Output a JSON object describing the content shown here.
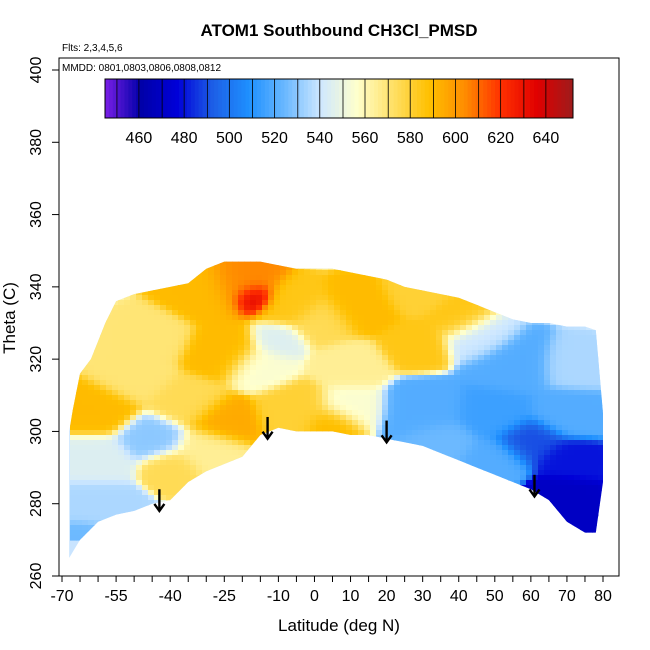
{
  "chart_data": {
    "type": "heatmap",
    "title": "ATOM1 Southbound CH3Cl_PMSD",
    "annotations": [
      "Flts: 2,3,4,5,6",
      "MMDD: 0801,0803,0806,0808,0812"
    ],
    "xlabel": "Latitude (deg N)",
    "ylabel": "Theta (C)",
    "xlim": [
      -70,
      80
    ],
    "ylim": [
      260,
      400
    ],
    "x_ticks": [
      -70,
      -55,
      -40,
      -25,
      -10,
      0,
      10,
      20,
      30,
      40,
      50,
      60,
      70,
      80
    ],
    "x_minor_ticks": [
      -65,
      -60,
      -50,
      -45,
      -35,
      -30,
      -20,
      -15,
      -5,
      5,
      15,
      25,
      35,
      45,
      55,
      65,
      75
    ],
    "y_ticks": [
      260,
      280,
      300,
      320,
      340,
      360,
      380,
      400
    ],
    "colorbar": {
      "min": 445,
      "max": 652,
      "ticks": [
        460,
        480,
        500,
        520,
        540,
        560,
        580,
        600,
        620,
        640
      ],
      "colors": [
        "#7a1fe6",
        "#0000a8",
        "#0000d8",
        "#1d5fe6",
        "#1e90ff",
        "#6ab8ff",
        "#cfe8ff",
        "#ffffcc",
        "#ffe066",
        "#ffc000",
        "#ff8c00",
        "#ff3000",
        "#e00000",
        "#9e1b1b"
      ]
    },
    "boundary": {
      "top": [
        [
          -68,
          300
        ],
        [
          -67,
          306
        ],
        [
          -65,
          316
        ],
        [
          -62,
          320
        ],
        [
          -60,
          325
        ],
        [
          -58,
          330
        ],
        [
          -55,
          336
        ],
        [
          -50,
          338
        ],
        [
          -45,
          339
        ],
        [
          -40,
          340
        ],
        [
          -35,
          341
        ],
        [
          -30,
          345
        ],
        [
          -25,
          347
        ],
        [
          -20,
          347
        ],
        [
          -15,
          347
        ],
        [
          -10,
          346
        ],
        [
          -5,
          345
        ],
        [
          0,
          345
        ],
        [
          5,
          345
        ],
        [
          10,
          344
        ],
        [
          15,
          343
        ],
        [
          20,
          342
        ],
        [
          25,
          340
        ],
        [
          30,
          339
        ],
        [
          35,
          338
        ],
        [
          40,
          337
        ],
        [
          45,
          335
        ],
        [
          50,
          333
        ],
        [
          55,
          331
        ],
        [
          60,
          330
        ],
        [
          65,
          330
        ],
        [
          70,
          329
        ],
        [
          75,
          329
        ],
        [
          78,
          328
        ],
        [
          80,
          305
        ]
      ],
      "bottom": [
        [
          80,
          286
        ],
        [
          78,
          272
        ],
        [
          75,
          272
        ],
        [
          70,
          275
        ],
        [
          65,
          281
        ],
        [
          60,
          284
        ],
        [
          55,
          286
        ],
        [
          50,
          288
        ],
        [
          45,
          290
        ],
        [
          40,
          292
        ],
        [
          35,
          294
        ],
        [
          30,
          296
        ],
        [
          25,
          297
        ],
        [
          20,
          298
        ],
        [
          15,
          299
        ],
        [
          10,
          299
        ],
        [
          5,
          300
        ],
        [
          0,
          300
        ],
        [
          -5,
          300
        ],
        [
          -10,
          301
        ],
        [
          -15,
          299
        ],
        [
          -20,
          293
        ],
        [
          -25,
          291
        ],
        [
          -30,
          289
        ],
        [
          -35,
          286
        ],
        [
          -40,
          281
        ],
        [
          -45,
          280
        ],
        [
          -50,
          278
        ],
        [
          -55,
          277
        ],
        [
          -60,
          275
        ],
        [
          -65,
          270
        ],
        [
          -68,
          265
        ]
      ]
    },
    "data_blobs": [
      {
        "lat": -17,
        "theta": 337,
        "value": 640,
        "r": 3
      },
      {
        "lat": -20,
        "theta": 340,
        "value": 605,
        "r": 8
      },
      {
        "lat": -30,
        "theta": 338,
        "value": 590,
        "r": 9
      },
      {
        "lat": -7,
        "theta": 335,
        "value": 585,
        "r": 7
      },
      {
        "lat": 13,
        "theta": 334,
        "value": 590,
        "r": 8
      },
      {
        "lat": 28,
        "theta": 338,
        "value": 580,
        "r": 6
      },
      {
        "lat": 40,
        "theta": 331,
        "value": 585,
        "r": 6
      },
      {
        "lat": 2,
        "theta": 330,
        "value": 575,
        "r": 7
      },
      {
        "lat": -45,
        "theta": 326,
        "value": 570,
        "r": 8
      },
      {
        "lat": -25,
        "theta": 322,
        "value": 590,
        "r": 9
      },
      {
        "lat": 28,
        "theta": 324,
        "value": 585,
        "r": 7
      },
      {
        "lat": 45,
        "theta": 326,
        "value": 540,
        "r": 7
      },
      {
        "lat": -15,
        "theta": 318,
        "value": 555,
        "r": 7
      },
      {
        "lat": 10,
        "theta": 318,
        "value": 565,
        "r": 8
      },
      {
        "lat": -50,
        "theta": 315,
        "value": 570,
        "r": 8
      },
      {
        "lat": 55,
        "theta": 318,
        "value": 520,
        "r": 10
      },
      {
        "lat": 72,
        "theta": 318,
        "value": 535,
        "r": 7
      },
      {
        "lat": -60,
        "theta": 306,
        "value": 590,
        "r": 8
      },
      {
        "lat": -35,
        "theta": 308,
        "value": 575,
        "r": 8
      },
      {
        "lat": -25,
        "theta": 303,
        "value": 595,
        "r": 7
      },
      {
        "lat": -5,
        "theta": 306,
        "value": 580,
        "r": 9
      },
      {
        "lat": 10,
        "theta": 307,
        "value": 555,
        "r": 7
      },
      {
        "lat": 30,
        "theta": 306,
        "value": 520,
        "r": 10
      },
      {
        "lat": 50,
        "theta": 305,
        "value": 515,
        "r": 9
      },
      {
        "lat": 70,
        "theta": 305,
        "value": 520,
        "r": 8
      },
      {
        "lat": 5,
        "theta": 302,
        "value": 590,
        "r": 5
      },
      {
        "lat": -45,
        "theta": 298,
        "value": 530,
        "r": 7
      },
      {
        "lat": -60,
        "theta": 292,
        "value": 545,
        "r": 8
      },
      {
        "lat": -30,
        "theta": 295,
        "value": 565,
        "r": 7
      },
      {
        "lat": -40,
        "theta": 290,
        "value": 575,
        "r": 5
      },
      {
        "lat": 35,
        "theta": 297,
        "value": 525,
        "r": 7
      },
      {
        "lat": 60,
        "theta": 297,
        "value": 490,
        "r": 7
      },
      {
        "lat": 70,
        "theta": 292,
        "value": 480,
        "r": 6
      },
      {
        "lat": 68,
        "theta": 282,
        "value": 470,
        "r": 6
      },
      {
        "lat": 76,
        "theta": 276,
        "value": 470,
        "r": 4
      },
      {
        "lat": -60,
        "theta": 280,
        "value": 535,
        "r": 8
      },
      {
        "lat": -63,
        "theta": 270,
        "value": 525,
        "r": 5
      },
      {
        "lat": 50,
        "theta": 292,
        "value": 520,
        "r": 7
      },
      {
        "lat": -10,
        "theta": 325,
        "value": 545,
        "r": 5
      }
    ],
    "arrows": [
      {
        "lat": -43,
        "theta_from": 284,
        "theta_to": 278
      },
      {
        "lat": -13,
        "theta_from": 304,
        "theta_to": 298
      },
      {
        "lat": 20,
        "theta_from": 303,
        "theta_to": 297
      },
      {
        "lat": 61,
        "theta_from": 288,
        "theta_to": 282
      }
    ]
  }
}
